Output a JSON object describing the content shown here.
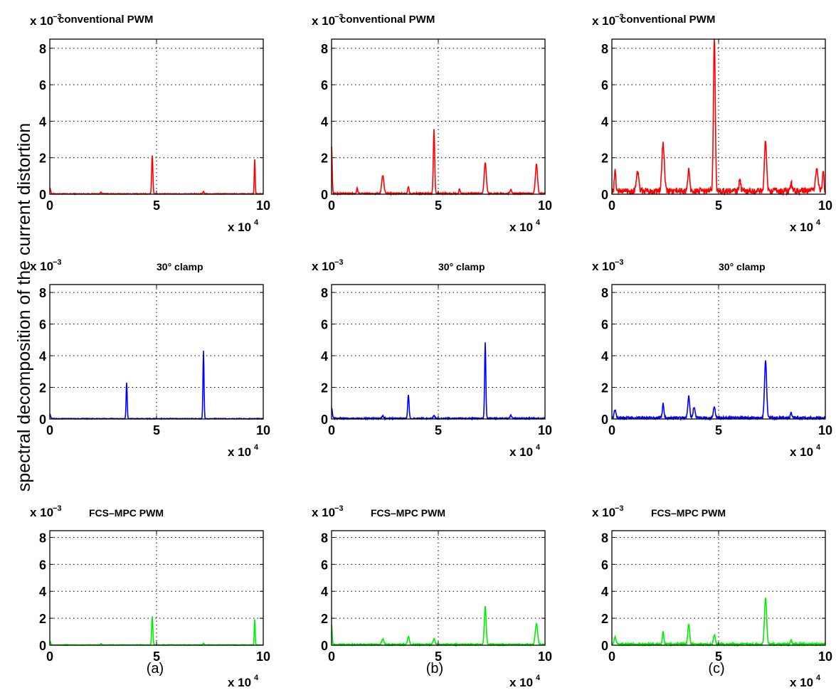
{
  "figure": {
    "ylabel": "spectral decomposition of the current distortion",
    "subfigure_labels": [
      "(a)",
      "(b)",
      "(c)"
    ],
    "y_multiplier": "x 10",
    "y_exponent": "−3",
    "x_multiplier": "x 10",
    "x_exponent": "4"
  },
  "row_titles": [
    "conventional PWM",
    "30° clamp",
    "FCS–MPC PWM"
  ],
  "colors": [
    "#ff0000",
    "#0000ff",
    "#00ee00"
  ],
  "chart_data": [
    {
      "type": "line",
      "row": 0,
      "col": 0,
      "title": "conventional PWM",
      "xlim": [
        0,
        100000
      ],
      "ylim": [
        0,
        0.0085
      ],
      "xticks": [
        0,
        50000,
        100000
      ],
      "yticks": [
        0,
        0.002,
        0.004,
        0.006,
        0.008
      ],
      "grid": true,
      "series": [
        {
          "peaks": [
            [
              0,
              0.00035,
              500
            ],
            [
              24000,
              0.0001,
              400
            ],
            [
              48000,
              0.0021,
              400
            ],
            [
              72000,
              0.00012,
              400
            ],
            [
              96000,
              0.0019,
              300
            ]
          ],
          "noise": 4e-05
        }
      ]
    },
    {
      "type": "line",
      "row": 0,
      "col": 1,
      "title": "conventional PWM",
      "xlim": [
        0,
        100000
      ],
      "ylim": [
        0,
        0.0085
      ],
      "xticks": [
        0,
        50000,
        100000
      ],
      "yticks": [
        0,
        0.002,
        0.004,
        0.006,
        0.008
      ],
      "grid": true,
      "series": [
        {
          "peaks": [
            [
              0,
              0.0026,
              400
            ],
            [
              12000,
              0.0003,
              400
            ],
            [
              24000,
              0.001,
              700
            ],
            [
              36000,
              0.0004,
              400
            ],
            [
              48000,
              0.0035,
              450
            ],
            [
              60000,
              0.00025,
              400
            ],
            [
              72000,
              0.0017,
              700
            ],
            [
              84000,
              0.0002,
              600
            ],
            [
              96000,
              0.0016,
              700
            ]
          ],
          "noise": 8e-05
        }
      ]
    },
    {
      "type": "line",
      "row": 0,
      "col": 2,
      "title": "conventional PWM",
      "xlim": [
        0,
        100000
      ],
      "ylim": [
        0,
        0.0085
      ],
      "xticks": [
        0,
        50000,
        100000
      ],
      "yticks": [
        0,
        0.002,
        0.004,
        0.006,
        0.008
      ],
      "grid": true,
      "series": [
        {
          "peaks": [
            [
              1500,
              0.0011,
              500
            ],
            [
              12000,
              0.0011,
              800
            ],
            [
              24000,
              0.0026,
              800
            ],
            [
              36000,
              0.0012,
              600
            ],
            [
              48000,
              0.0085,
              600
            ],
            [
              60000,
              0.0006,
              600
            ],
            [
              72000,
              0.0028,
              700
            ],
            [
              84000,
              0.0004,
              600
            ],
            [
              96000,
              0.0012,
              900
            ],
            [
              99000,
              0.001,
              500
            ]
          ],
          "noise": 0.00035
        }
      ]
    },
    {
      "type": "line",
      "row": 1,
      "col": 0,
      "title": "30° clamp",
      "xlim": [
        0,
        100000
      ],
      "ylim": [
        0,
        0.0085
      ],
      "xticks": [
        0,
        50000,
        100000
      ],
      "yticks": [
        0,
        0.002,
        0.004,
        0.006,
        0.008
      ],
      "grid": true,
      "series": [
        {
          "peaks": [
            [
              0,
              0.0003,
              500
            ],
            [
              36000,
              0.0023,
              350
            ],
            [
              72000,
              0.0043,
              350
            ]
          ],
          "noise": 4e-05
        }
      ]
    },
    {
      "type": "line",
      "row": 1,
      "col": 1,
      "title": "30° clamp",
      "xlim": [
        0,
        100000
      ],
      "ylim": [
        0,
        0.0085
      ],
      "xticks": [
        0,
        50000,
        100000
      ],
      "yticks": [
        0,
        0.002,
        0.004,
        0.006,
        0.008
      ],
      "grid": true,
      "series": [
        {
          "peaks": [
            [
              0,
              0.0007,
              500
            ],
            [
              24000,
              0.00015,
              500
            ],
            [
              36000,
              0.0015,
              450
            ],
            [
              48000,
              0.0002,
              500
            ],
            [
              72000,
              0.0048,
              400
            ],
            [
              84000,
              0.0002,
              500
            ]
          ],
          "noise": 8e-05
        }
      ]
    },
    {
      "type": "line",
      "row": 1,
      "col": 2,
      "title": "30° clamp",
      "xlim": [
        0,
        100000
      ],
      "ylim": [
        0,
        0.0085
      ],
      "xticks": [
        0,
        50000,
        100000
      ],
      "yticks": [
        0,
        0.002,
        0.004,
        0.006,
        0.008
      ],
      "grid": true,
      "series": [
        {
          "peaks": [
            [
              1500,
              0.0005,
              600
            ],
            [
              24000,
              0.0009,
              500
            ],
            [
              36000,
              0.0014,
              600
            ],
            [
              38500,
              0.0007,
              600
            ],
            [
              48000,
              0.0007,
              600
            ],
            [
              72000,
              0.0036,
              700
            ],
            [
              84000,
              0.0003,
              500
            ]
          ],
          "noise": 0.00015
        }
      ]
    },
    {
      "type": "line",
      "row": 2,
      "col": 0,
      "title": "FCS–MPC PWM",
      "xlim": [
        0,
        100000
      ],
      "ylim": [
        0,
        0.0085
      ],
      "xticks": [
        0,
        50000,
        100000
      ],
      "yticks": [
        0,
        0.002,
        0.004,
        0.006,
        0.008
      ],
      "grid": true,
      "series": [
        {
          "peaks": [
            [
              0,
              0.0003,
              500
            ],
            [
              24000,
              0.0001,
              400
            ],
            [
              48000,
              0.0021,
              400
            ],
            [
              72000,
              0.00012,
              400
            ],
            [
              96000,
              0.0019,
              300
            ]
          ],
          "noise": 4e-05
        }
      ]
    },
    {
      "type": "line",
      "row": 2,
      "col": 1,
      "title": "FCS–MPC PWM",
      "xlim": [
        0,
        100000
      ],
      "ylim": [
        0,
        0.0085
      ],
      "xticks": [
        0,
        50000,
        100000
      ],
      "yticks": [
        0,
        0.002,
        0.004,
        0.006,
        0.008
      ],
      "grid": true,
      "series": [
        {
          "peaks": [
            [
              0,
              0.0015,
              400
            ],
            [
              24000,
              0.0004,
              700
            ],
            [
              36000,
              0.0006,
              600
            ],
            [
              48000,
              0.0004,
              700
            ],
            [
              72000,
              0.0028,
              600
            ],
            [
              96000,
              0.0015,
              800
            ]
          ],
          "noise": 0.0001
        }
      ]
    },
    {
      "type": "line",
      "row": 2,
      "col": 2,
      "title": "FCS–MPC PWM",
      "xlim": [
        0,
        100000
      ],
      "ylim": [
        0,
        0.0085
      ],
      "xticks": [
        0,
        50000,
        100000
      ],
      "yticks": [
        0,
        0.002,
        0.004,
        0.006,
        0.008
      ],
      "grid": true,
      "series": [
        {
          "peaks": [
            [
              1500,
              0.0005,
              600
            ],
            [
              24000,
              0.0009,
              500
            ],
            [
              36000,
              0.0015,
              600
            ],
            [
              48000,
              0.0007,
              600
            ],
            [
              72000,
              0.0035,
              700
            ],
            [
              84000,
              0.0003,
              500
            ]
          ],
          "noise": 0.00015
        }
      ]
    }
  ]
}
